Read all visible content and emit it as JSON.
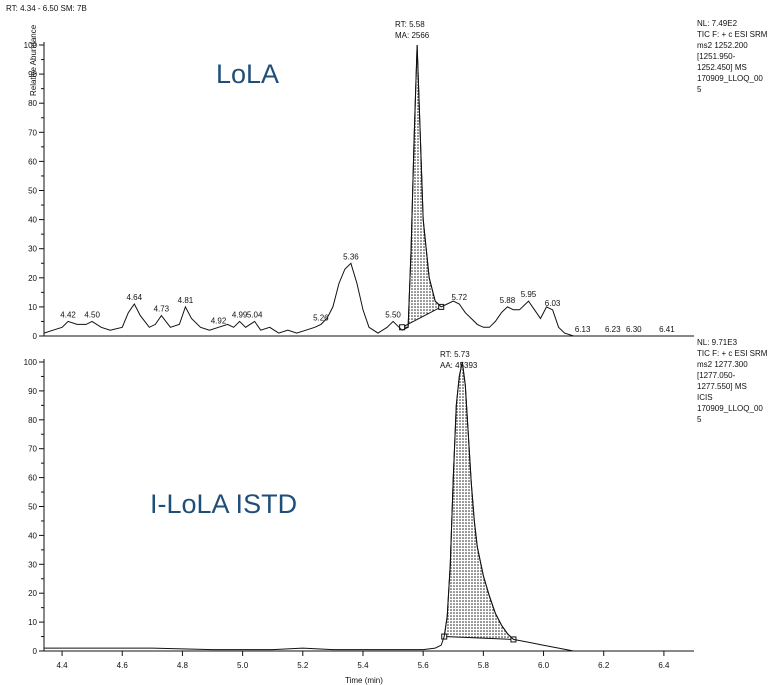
{
  "header": {
    "range_text": "RT: 4.34 - 6.50   SM: 7B"
  },
  "chart_data": [
    {
      "type": "line",
      "title": "LoLA",
      "ylabel": "Relative Abundance",
      "xlabel": "",
      "xlim": [
        4.34,
        6.5
      ],
      "ylim": [
        0,
        100
      ],
      "y_ticks": [
        "0",
        "5",
        "10",
        "15",
        "20",
        "25",
        "30",
        "35",
        "40",
        "45",
        "50",
        "55",
        "60",
        "65",
        "70",
        "75",
        "80",
        "85",
        "90",
        "95",
        "100"
      ],
      "x_ticks": [],
      "peak_annotation": [
        "RT: 5.58",
        "MA: 2566"
      ],
      "info": [
        "NL: 7.49E2",
        "TIC F: + c ESI SRM",
        "ms2 1252.200",
        "[1251.950-",
        "1252.450]  MS",
        "170909_LLOQ_00",
        "5"
      ],
      "peak_labels": [
        {
          "x": 4.42,
          "y": 5,
          "label": "4.42"
        },
        {
          "x": 4.5,
          "y": 5,
          "label": "4.50"
        },
        {
          "x": 4.64,
          "y": 11,
          "label": "4.64"
        },
        {
          "x": 4.73,
          "y": 7,
          "label": "4.73"
        },
        {
          "x": 4.81,
          "y": 10,
          "label": "4.81"
        },
        {
          "x": 4.92,
          "y": 3,
          "label": "4.92"
        },
        {
          "x": 4.99,
          "y": 5,
          "label": "4.99"
        },
        {
          "x": 5.04,
          "y": 5,
          "label": "5.04"
        },
        {
          "x": 5.26,
          "y": 4,
          "label": "5.26"
        },
        {
          "x": 5.36,
          "y": 25,
          "label": "5.36"
        },
        {
          "x": 5.5,
          "y": 5,
          "label": "5.50"
        },
        {
          "x": 5.72,
          "y": 11,
          "label": "5.72"
        },
        {
          "x": 5.88,
          "y": 10,
          "label": "5.88"
        },
        {
          "x": 5.95,
          "y": 12,
          "label": "5.95"
        },
        {
          "x": 6.03,
          "y": 9,
          "label": "6.03"
        },
        {
          "x": 6.13,
          "y": 0,
          "label": "6.13"
        },
        {
          "x": 6.23,
          "y": 0,
          "label": "6.23"
        },
        {
          "x": 6.3,
          "y": 0,
          "label": "6.30"
        },
        {
          "x": 6.41,
          "y": 0,
          "label": "6.41"
        }
      ],
      "series": [
        {
          "x": [
            4.34,
            4.37,
            4.4,
            4.42,
            4.45,
            4.48,
            4.5,
            4.53,
            4.56,
            4.6,
            4.62,
            4.64,
            4.66,
            4.69,
            4.71,
            4.73,
            4.76,
            4.79,
            4.81,
            4.83,
            4.86,
            4.89,
            4.92,
            4.95,
            4.97,
            4.99,
            5.01,
            5.04,
            5.06,
            5.09,
            5.12,
            5.15,
            5.18,
            5.21,
            5.24,
            5.26,
            5.28,
            5.3,
            5.32,
            5.34,
            5.36,
            5.38,
            5.4,
            5.42,
            5.45,
            5.48,
            5.5,
            5.52,
            5.53,
            5.55,
            5.56,
            5.57,
            5.58,
            5.59,
            5.6,
            5.62,
            5.64,
            5.66,
            5.68,
            5.7,
            5.72,
            5.74,
            5.76,
            5.78,
            5.8,
            5.82,
            5.84,
            5.86,
            5.88,
            5.9,
            5.92,
            5.95,
            5.97,
            5.99,
            6.01,
            6.03,
            6.05,
            6.07,
            6.1,
            6.2,
            6.3,
            6.4,
            6.5
          ],
          "y": [
            1,
            2,
            3,
            5,
            4,
            4,
            5,
            3,
            2,
            3,
            8,
            11,
            7,
            3,
            4,
            7,
            3,
            4,
            10,
            6,
            3,
            2,
            3,
            4,
            3,
            5,
            3,
            5,
            2,
            3,
            1,
            2,
            1,
            2,
            3,
            4,
            6,
            10,
            18,
            23,
            25,
            18,
            9,
            3,
            1,
            3,
            5,
            3,
            2,
            3,
            30,
            68,
            100,
            70,
            40,
            20,
            12,
            10,
            11,
            12,
            11,
            8,
            6,
            4,
            3,
            3,
            5,
            8,
            10,
            9,
            9,
            12,
            9,
            6,
            10,
            9,
            3,
            1,
            0,
            0,
            0,
            0,
            0
          ]
        }
      ],
      "shaded_peak": {
        "x": [
          5.53,
          5.55,
          5.56,
          5.57,
          5.58,
          5.59,
          5.6,
          5.62,
          5.64,
          5.66
        ],
        "y": [
          3,
          3,
          30,
          68,
          100,
          70,
          40,
          20,
          12,
          10
        ]
      }
    },
    {
      "type": "line",
      "title": "I-LoLA ISTD",
      "ylabel": "Relative Abundance",
      "xlabel": "Time (min)",
      "xlim": [
        4.34,
        6.5
      ],
      "ylim": [
        0,
        100
      ],
      "y_ticks": [
        "0",
        "5",
        "10",
        "15",
        "20",
        "25",
        "30",
        "35",
        "40",
        "45",
        "50",
        "55",
        "60",
        "65",
        "70",
        "75",
        "80",
        "85",
        "90",
        "95",
        "100"
      ],
      "x_ticks": [
        "4.4",
        "4.6",
        "4.8",
        "5.0",
        "5.2",
        "5.4",
        "5.6",
        "5.8",
        "6.0",
        "6.2",
        "6.4"
      ],
      "peak_annotation": [
        "RT: 5.73",
        "AA: 45393"
      ],
      "info": [
        "NL: 9.71E3",
        "TIC F: + c ESI SRM",
        "ms2 1277.300",
        "[1277.050-",
        "1277.550]  MS",
        "ICIS",
        "170909_LLOQ_00",
        "5"
      ],
      "series": [
        {
          "x": [
            4.34,
            4.5,
            4.7,
            4.9,
            5.1,
            5.2,
            5.3,
            5.4,
            5.5,
            5.6,
            5.64,
            5.66,
            5.67,
            5.68,
            5.69,
            5.7,
            5.71,
            5.72,
            5.73,
            5.74,
            5.75,
            5.76,
            5.77,
            5.78,
            5.8,
            5.82,
            5.84,
            5.86,
            5.88,
            5.9,
            5.95,
            6.0,
            6.05,
            6.1,
            6.2,
            6.3,
            6.4,
            6.5
          ],
          "y": [
            1,
            1,
            1,
            0.5,
            0.5,
            1,
            0.5,
            0.5,
            0.5,
            0.5,
            1,
            2,
            5,
            12,
            30,
            60,
            85,
            95,
            100,
            92,
            75,
            58,
            45,
            36,
            26,
            19,
            13,
            9,
            6,
            4,
            3,
            2,
            1,
            0,
            0,
            0,
            0,
            0
          ]
        }
      ],
      "shaded_peak": {
        "x": [
          5.67,
          5.68,
          5.69,
          5.7,
          5.71,
          5.72,
          5.73,
          5.74,
          5.75,
          5.76,
          5.77,
          5.78,
          5.8,
          5.82,
          5.84,
          5.86,
          5.88,
          5.9
        ],
        "y": [
          5,
          12,
          30,
          60,
          85,
          95,
          100,
          92,
          75,
          58,
          45,
          36,
          26,
          19,
          13,
          9,
          6,
          4
        ]
      }
    }
  ]
}
